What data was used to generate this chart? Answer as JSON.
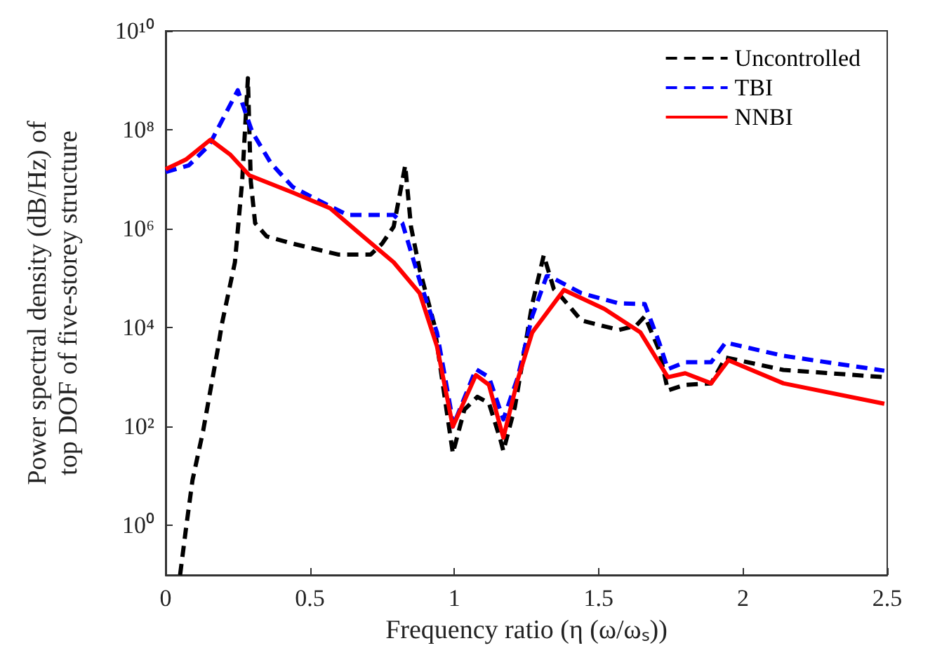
{
  "chart_data": {
    "type": "line",
    "xlabel": "Frequency ratio (η (ω/ωₛ))",
    "ylabel": "Power spectral density (dB/Hz) of\ntop DOF of five-storey structure",
    "xlim": [
      0,
      2.5
    ],
    "xticks": [
      0,
      0.5,
      1,
      1.5,
      2,
      2.5
    ],
    "ylim": [
      0.1,
      10000000000
    ],
    "log": "y",
    "yticks": [
      {
        "value": 1,
        "label": "10⁰"
      },
      {
        "value": 100,
        "label": "10²"
      },
      {
        "value": 10000,
        "label": "10⁴"
      },
      {
        "value": 1000000,
        "label": "10⁶"
      },
      {
        "value": 100000000,
        "label": "10⁸"
      },
      {
        "value": 10000000000,
        "label": "10¹⁰"
      }
    ],
    "grid": false,
    "legend": "top right",
    "marker": "none",
    "series": [
      {
        "name": "Uncontrolled",
        "color": "#000000",
        "line_style": "dashed",
        "x": [
          0.05,
          0.07,
          0.093,
          0.13,
          0.18,
          0.195,
          0.24,
          0.265,
          0.285,
          0.295,
          0.31,
          0.35,
          0.44,
          0.6,
          0.71,
          0.75,
          0.79,
          0.83,
          0.85,
          0.88,
          0.93,
          0.97,
          0.995,
          1.035,
          1.08,
          1.12,
          1.16,
          1.17,
          1.21,
          1.27,
          1.31,
          1.345,
          1.36,
          1.44,
          1.57,
          1.63,
          1.66,
          1.71,
          1.74,
          1.8,
          1.89,
          1.94,
          2.14,
          2.49
        ],
        "values": [
          0.1,
          0.83,
          8.3,
          83,
          3500,
          12000,
          210000,
          9000000,
          1100000000,
          9000000,
          1300000,
          700000,
          500000,
          300000,
          300000,
          500000,
          1100000,
          19000000,
          1100000,
          150000,
          12000,
          290,
          29,
          220,
          400,
          300,
          54,
          32,
          250,
          30000,
          290000,
          60000,
          50000,
          14000,
          9000,
          11000,
          17000,
          3500,
          540,
          700,
          750,
          2500,
          1400,
          1000
        ]
      },
      {
        "name": "TBI",
        "color": "#0000ff",
        "line_style": "dashed",
        "x": [
          0,
          0.08,
          0.15,
          0.25,
          0.3,
          0.365,
          0.44,
          0.52,
          0.63,
          0.79,
          0.82,
          0.88,
          0.94,
          0.99,
          0.995,
          1.075,
          1.12,
          1.17,
          1.22,
          1.27,
          1.32,
          1.33,
          1.44,
          1.57,
          1.66,
          1.71,
          1.74,
          1.8,
          1.89,
          1.94,
          2.14,
          2.49
        ],
        "values": [
          14000000,
          19000000,
          48000000,
          630000000,
          90000000,
          21000000,
          7000000,
          4000000,
          1900000,
          1900000,
          1300000,
          90000,
          8000,
          190,
          100,
          1450,
          1000,
          140,
          1000,
          17000,
          110000,
          110000,
          50000,
          31000,
          30000,
          5000,
          1450,
          2000,
          2000,
          5000,
          2700,
          1350
        ]
      },
      {
        "name": "NNBI",
        "color": "#ff0000",
        "line_style": "solid",
        "x": [
          0,
          0.07,
          0.155,
          0.225,
          0.29,
          0.44,
          0.57,
          0.68,
          0.79,
          0.88,
          0.94,
          0.995,
          1.075,
          1.12,
          1.17,
          1.22,
          1.27,
          1.38,
          1.52,
          1.645,
          1.74,
          1.8,
          1.89,
          1.95,
          2.14,
          2.49
        ],
        "values": [
          16000000,
          25000000,
          63000000,
          31000000,
          12000000,
          5400000,
          2600000,
          730000,
          210000,
          50000,
          4200,
          100,
          1100,
          700,
          60,
          900,
          8000,
          58000,
          24000,
          8000,
          1000,
          1200,
          750,
          2200,
          750,
          290
        ]
      }
    ]
  }
}
